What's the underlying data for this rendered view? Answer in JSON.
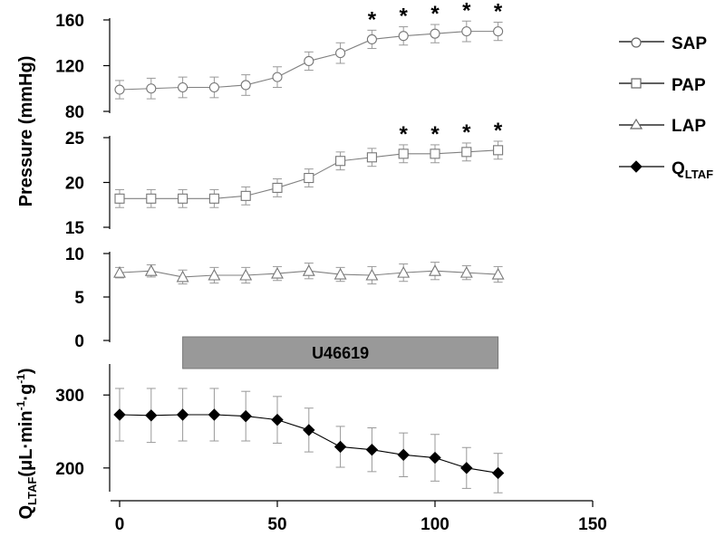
{
  "chart_data": {
    "type": "line",
    "x_axis": {
      "range": [
        0,
        150
      ],
      "ticks": [
        "0",
        "50",
        "100",
        "150"
      ]
    },
    "treatment_bar": {
      "label": "U46619",
      "x_range": [
        20,
        120
      ]
    },
    "ylabel_top": "Pressure (mmHg)",
    "ylabel_bottom": {
      "main": "Q",
      "sub": "LTAF",
      "rest": "(μL·min",
      "exp1": "-1",
      "dot": "·g",
      "exp2": "-1",
      "close": ")"
    },
    "panels": [
      {
        "name": "SAP",
        "marker": "circle",
        "color": "#808080",
        "ylim": [
          80,
          160
        ],
        "ticks": [
          "80",
          "120",
          "160"
        ],
        "x": [
          0,
          10,
          20,
          30,
          40,
          50,
          60,
          70,
          80,
          90,
          100,
          110,
          120
        ],
        "y": [
          99,
          100,
          101,
          101,
          103,
          110,
          124,
          131,
          143,
          146,
          148,
          150,
          150
        ],
        "err": [
          8,
          9,
          9,
          9,
          9,
          9,
          8,
          9,
          8,
          8,
          8,
          9,
          8
        ],
        "significance": [
          80,
          90,
          100,
          110,
          120
        ],
        "sig_symbol": "*"
      },
      {
        "name": "PAP",
        "marker": "square",
        "color": "#808080",
        "ylim": [
          15,
          25
        ],
        "ticks": [
          "15",
          "20",
          "25"
        ],
        "x": [
          0,
          10,
          20,
          30,
          40,
          50,
          60,
          70,
          80,
          90,
          100,
          110,
          120
        ],
        "y": [
          18.2,
          18.2,
          18.2,
          18.2,
          18.5,
          19.4,
          20.5,
          22.4,
          22.8,
          23.2,
          23.2,
          23.4,
          23.6
        ],
        "err": [
          1.0,
          1.0,
          1.0,
          1.0,
          1.0,
          1.0,
          1.0,
          1.0,
          1.0,
          1.0,
          1.0,
          1.0,
          1.0
        ],
        "significance": [
          90,
          100,
          110,
          120
        ],
        "sig_symbol": "*"
      },
      {
        "name": "LAP",
        "marker": "triangle",
        "color": "#808080",
        "ylim": [
          0,
          10
        ],
        "ticks": [
          "0",
          "5",
          "10"
        ],
        "x": [
          0,
          10,
          20,
          30,
          40,
          50,
          60,
          70,
          80,
          90,
          100,
          110,
          120
        ],
        "y": [
          7.8,
          8.0,
          7.3,
          7.5,
          7.5,
          7.7,
          8.0,
          7.6,
          7.5,
          7.8,
          8.0,
          7.8,
          7.6
        ],
        "err": [
          0.6,
          0.7,
          0.8,
          0.9,
          0.9,
          0.8,
          0.9,
          0.8,
          1.0,
          1.0,
          1.0,
          0.8,
          0.9
        ],
        "significance": [],
        "sig_symbol": "*"
      },
      {
        "name": "QLTAF",
        "marker": "diamond",
        "color": "#000000",
        "ylim": [
          170,
          340
        ],
        "ticks": [
          "200",
          "300"
        ],
        "x": [
          0,
          10,
          20,
          30,
          40,
          50,
          60,
          70,
          80,
          90,
          100,
          110,
          120
        ],
        "y": [
          273,
          272,
          273,
          273,
          271,
          266,
          252,
          229,
          225,
          218,
          214,
          200,
          193
        ],
        "err": [
          36,
          37,
          36,
          36,
          34,
          32,
          30,
          28,
          30,
          30,
          32,
          28,
          27
        ],
        "significance": [],
        "sig_symbol": "*"
      }
    ],
    "legend": [
      {
        "label": "SAP",
        "marker": "circle"
      },
      {
        "label": "PAP",
        "marker": "square"
      },
      {
        "label": "LAP",
        "marker": "triangle"
      },
      {
        "label": "Q",
        "sub": "LTAF",
        "marker": "diamond"
      }
    ]
  }
}
